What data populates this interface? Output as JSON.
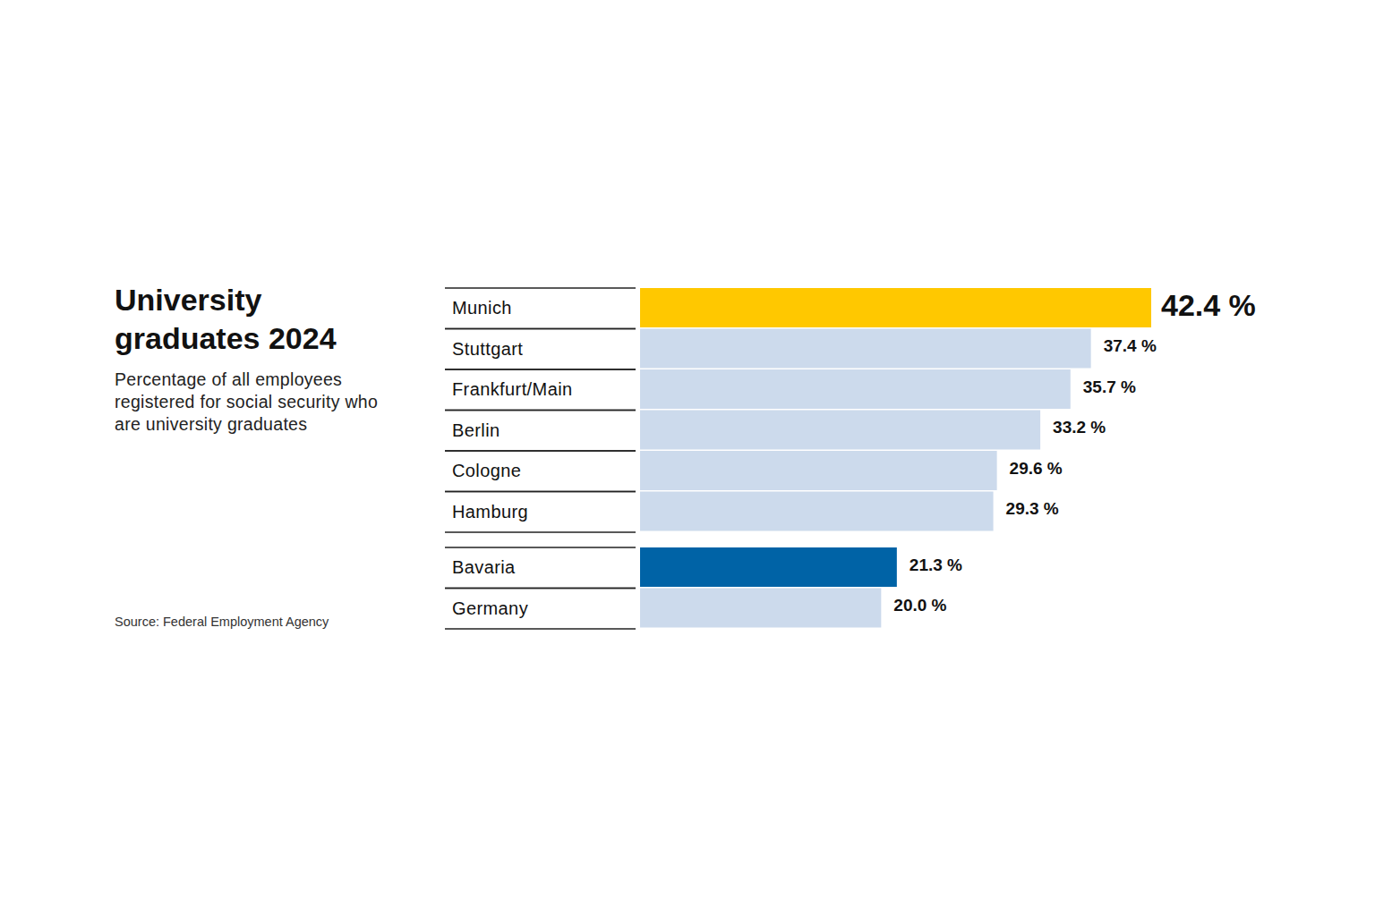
{
  "chart_data": {
    "type": "bar",
    "orientation": "horizontal",
    "title": "University graduates 2024",
    "subtitle": "Percentage of all employees registered for social security who are university graduates",
    "source": "Source: Federal Employment Agency",
    "categories": [
      "Munich",
      "Stuttgart",
      "Frankfurt/Main",
      "Berlin",
      "Cologne",
      "Hamburg",
      "Bavaria",
      "Germany"
    ],
    "values": [
      42.4,
      37.4,
      35.7,
      33.2,
      29.6,
      29.3,
      21.3,
      20.0
    ],
    "value_labels": [
      "42.4 %",
      "37.4 %",
      "35.7 %",
      "33.2 %",
      "29.6 %",
      "29.3 %",
      "21.3 %",
      "20.0 %"
    ],
    "colors": [
      "#ffc800",
      "#ccdaec",
      "#ccdaec",
      "#ccdaec",
      "#ccdaec",
      "#ccdaec",
      "#0063a6",
      "#ccdaec"
    ],
    "xlim": [
      0,
      42.4
    ],
    "data_labels": true,
    "tick_labels": false
  }
}
